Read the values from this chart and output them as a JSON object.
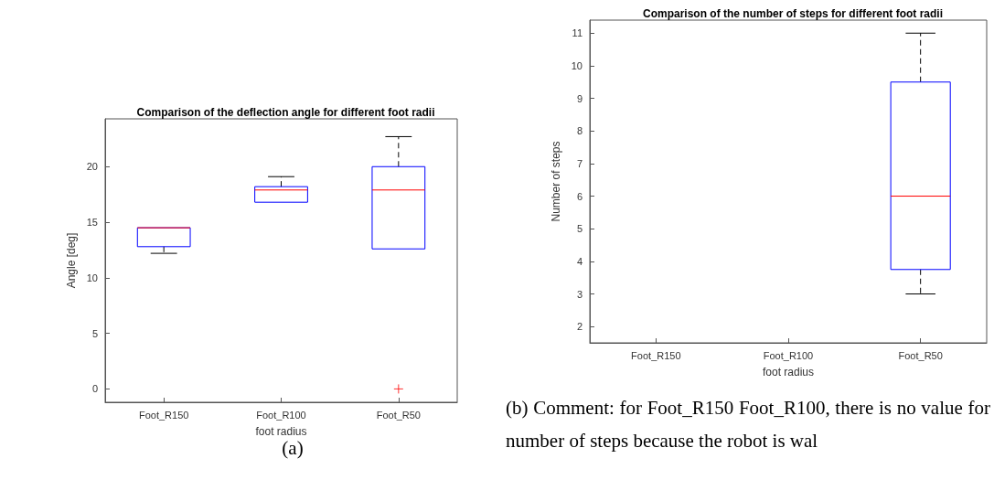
{
  "chart_data": [
    {
      "type": "box",
      "title": "Comparison of the deflection angle for different foot radii",
      "xlabel": "foot radius",
      "ylabel": "Angle [deg]",
      "categories": [
        "Foot_R150",
        "Foot_R100",
        "Foot_R50"
      ],
      "series": [
        {
          "color": "#0000ff",
          "boxes": [
            {
              "low": 12.2,
              "q1": 12.8,
              "median": 14.5,
              "q3": 14.5,
              "high": 14.5
            },
            {
              "low": 16.8,
              "q1": 16.8,
              "median": 17.9,
              "q3": 18.2,
              "high": 19.1
            },
            {
              "low": 12.6,
              "q1": 12.6,
              "median": 17.9,
              "q3": 20,
              "high": 22.7,
              "outliers": [
                0
              ]
            }
          ]
        }
      ],
      "ylim": [
        -1.2,
        24.3
      ],
      "yticks": [
        0,
        5,
        10,
        15,
        20
      ],
      "annotations": [
        "(a)"
      ]
    },
    {
      "type": "box",
      "title": "Comparison of the number of steps for different foot radii",
      "xlabel": "foot radius",
      "ylabel": "Number of steps",
      "categories": [
        "Foot_R150",
        "Foot_R100",
        "Foot_R50"
      ],
      "series": [
        {
          "color": "#0000ff",
          "boxes": [
            null,
            null,
            {
              "low": 3,
              "q1": 3.75,
              "median": 6,
              "q3": 9.5,
              "high": 11
            }
          ]
        }
      ],
      "ylim": [
        1.5,
        11.4
      ],
      "yticks": [
        2,
        3,
        4,
        5,
        6,
        7,
        8,
        9,
        10,
        11
      ],
      "annotations": [
        "(b) Comment: for Foot_R150 Foot_R100, there is no value for number of steps because the robot is wal"
      ]
    }
  ]
}
